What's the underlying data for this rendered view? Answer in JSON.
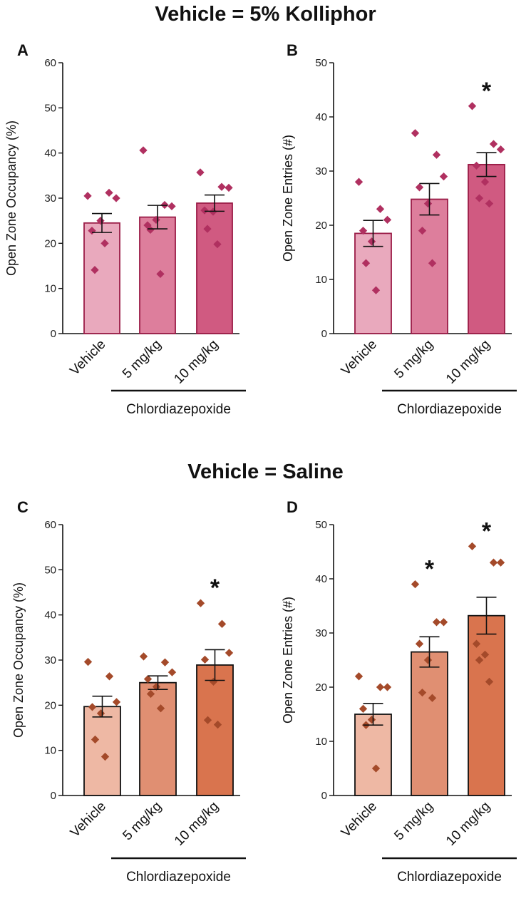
{
  "headings": {
    "top": "Vehicle = 5% Kolliphor",
    "bottom": "Vehicle = Saline"
  },
  "colors": {
    "kolliphor": [
      "#e9a9bd",
      "#dd7e9c",
      "#d05a81"
    ],
    "kolliphor_edge": "#9a1c47",
    "kolliphor_points": "#b03060",
    "saline": [
      "#eeb8a4",
      "#e08f72",
      "#d9744e"
    ],
    "saline_edge": "#111111",
    "saline_points": "#a44a2a"
  },
  "chart_data": [
    {
      "panel": "A",
      "type": "bar",
      "group_label": "Chlordiazepoxide",
      "categories": [
        "Vehicle",
        "5 mg/kg",
        "10 mg/kg"
      ],
      "values": [
        24.5,
        25.8,
        28.9
      ],
      "sem": [
        2.1,
        2.6,
        1.8
      ],
      "points": [
        [
          30.5,
          31.2,
          30.0,
          22.8,
          25.0,
          14.1,
          20.0
        ],
        [
          40.6,
          28.5,
          28.2,
          24.0,
          25.2,
          23.0,
          13.2
        ],
        [
          35.7,
          32.5,
          32.3,
          27.3,
          27.0,
          23.2,
          19.8
        ]
      ],
      "ylabel": "Open Zone Occupancy (%)",
      "ylim": [
        0,
        60
      ],
      "yticks": [
        0,
        10,
        20,
        30,
        40,
        50,
        60
      ],
      "significant": [
        false,
        false,
        false
      ],
      "significance_marker": "*"
    },
    {
      "panel": "B",
      "type": "bar",
      "group_label": "Chlordiazepoxide",
      "categories": [
        "Vehicle",
        "5 mg/kg",
        "10 mg/kg"
      ],
      "values": [
        18.5,
        24.8,
        31.2
      ],
      "sem": [
        2.4,
        2.9,
        2.2
      ],
      "points": [
        [
          28,
          23,
          21,
          19,
          17,
          13,
          8
        ],
        [
          37,
          33,
          29,
          27,
          24,
          19,
          13
        ],
        [
          42,
          35,
          34,
          31,
          28,
          25,
          24
        ]
      ],
      "ylabel": "Open Zone Entries (#)",
      "ylim": [
        0,
        50
      ],
      "yticks": [
        0,
        10,
        20,
        30,
        40,
        50
      ],
      "significant": [
        false,
        false,
        true
      ],
      "significance_marker": "*"
    },
    {
      "panel": "C",
      "type": "bar",
      "group_label": "Chlordiazepoxide",
      "categories": [
        "Vehicle",
        "5 mg/kg",
        "10 mg/kg"
      ],
      "values": [
        19.7,
        25.0,
        28.9
      ],
      "sem": [
        2.3,
        1.5,
        3.4
      ],
      "points": [
        [
          29.6,
          26.4,
          20.7,
          19.6,
          18.2,
          12.4,
          8.6
        ],
        [
          30.8,
          29.5,
          27.3,
          25.8,
          24.1,
          22.5,
          19.3
        ],
        [
          42.6,
          38.0,
          31.6,
          30.1,
          25.2,
          16.7,
          15.7
        ]
      ],
      "ylabel": "Open Zone Occupancy (%)",
      "ylim": [
        0,
        60
      ],
      "yticks": [
        0,
        10,
        20,
        30,
        40,
        50,
        60
      ],
      "significant": [
        false,
        false,
        true
      ],
      "significance_marker": "*"
    },
    {
      "panel": "D",
      "type": "bar",
      "group_label": "Chlordiazepoxide",
      "categories": [
        "Vehicle",
        "5 mg/kg",
        "10 mg/kg"
      ],
      "values": [
        15.0,
        26.5,
        33.2
      ],
      "sem": [
        2.0,
        2.8,
        3.4
      ],
      "points": [
        [
          22,
          20,
          20,
          16,
          14,
          13,
          5
        ],
        [
          39,
          32,
          32,
          28,
          25,
          19,
          18
        ],
        [
          46,
          43,
          43,
          28,
          26,
          25,
          21
        ]
      ],
      "ylabel": "Open Zone Entries (#)",
      "ylim": [
        0,
        50
      ],
      "yticks": [
        0,
        10,
        20,
        30,
        40,
        50
      ],
      "significant": [
        false,
        true,
        true
      ],
      "significance_marker": "*"
    }
  ]
}
